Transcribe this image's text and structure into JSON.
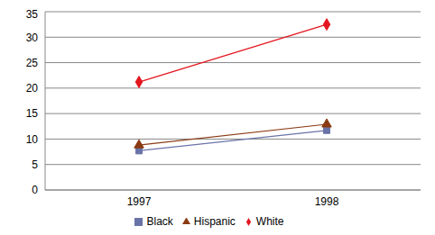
{
  "chart_data": {
    "type": "line",
    "categories": [
      "1997",
      "1998"
    ],
    "series": [
      {
        "name": "White",
        "color": "#e4161e",
        "marker": "diamond",
        "values": [
          21.2,
          32.5
        ]
      },
      {
        "name": "Black",
        "color": "#6a73a8",
        "marker": "square",
        "values": [
          7.7,
          11.7
        ]
      },
      {
        "name": "Hispanic",
        "color": "#8b3a12",
        "marker": "triangle",
        "values": [
          8.8,
          12.9
        ]
      }
    ],
    "ylim": [
      0,
      35
    ],
    "yticks": [
      0,
      5,
      10,
      15,
      20,
      25,
      30,
      35
    ],
    "grid": true,
    "legend": "bottom"
  }
}
